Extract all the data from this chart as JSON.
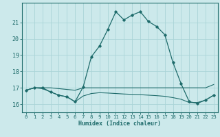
{
  "xlabel": "Humidex (Indice chaleur)",
  "background_color": "#cce9eb",
  "grid_color": "#aad4d7",
  "line_color": "#1e6b6b",
  "xlim": [
    -0.5,
    23.5
  ],
  "ylim": [
    15.5,
    22.2
  ],
  "xticks": [
    0,
    1,
    2,
    3,
    4,
    5,
    6,
    7,
    8,
    9,
    10,
    11,
    12,
    13,
    14,
    15,
    16,
    17,
    18,
    19,
    20,
    21,
    22,
    23
  ],
  "yticks": [
    16,
    17,
    18,
    19,
    20,
    21
  ],
  "curve_x": [
    0,
    1,
    2,
    3,
    4,
    5,
    6,
    7,
    8,
    9,
    10,
    11,
    12,
    13,
    14,
    15,
    16,
    17,
    18,
    19,
    20,
    21,
    22,
    23
  ],
  "curve_y": [
    16.85,
    17.0,
    17.0,
    16.75,
    16.55,
    16.45,
    16.15,
    17.05,
    18.9,
    19.55,
    20.55,
    21.65,
    21.15,
    21.45,
    21.65,
    21.05,
    20.75,
    20.25,
    18.55,
    17.25,
    16.15,
    16.05,
    16.25,
    16.55
  ],
  "flat_x": [
    0,
    1,
    2,
    3,
    4,
    5,
    6,
    7,
    8,
    9,
    10,
    11,
    12,
    13,
    14,
    15,
    16,
    17,
    18,
    19,
    20,
    21,
    22,
    23
  ],
  "flat_y": [
    16.85,
    17.0,
    17.0,
    17.0,
    16.95,
    16.9,
    16.85,
    17.0,
    17.0,
    17.0,
    17.0,
    17.0,
    17.0,
    17.0,
    17.0,
    17.0,
    17.0,
    17.0,
    17.0,
    17.0,
    17.0,
    17.0,
    17.0,
    17.2
  ],
  "decline_x": [
    0,
    1,
    2,
    3,
    4,
    5,
    6,
    7,
    8,
    9,
    10,
    11,
    12,
    13,
    14,
    15,
    16,
    17,
    18,
    19,
    20,
    21,
    22,
    23
  ],
  "decline_y": [
    16.85,
    17.0,
    16.95,
    16.75,
    16.55,
    16.45,
    16.15,
    16.5,
    16.65,
    16.7,
    16.68,
    16.65,
    16.62,
    16.6,
    16.58,
    16.55,
    16.52,
    16.48,
    16.4,
    16.3,
    16.1,
    16.1,
    16.25,
    16.55
  ]
}
